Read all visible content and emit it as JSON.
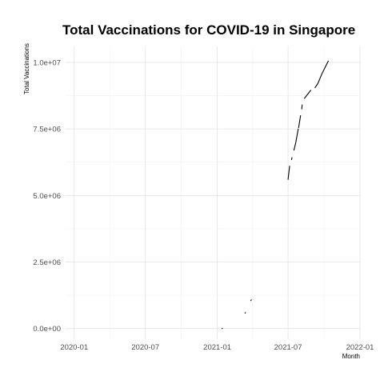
{
  "chart_data": {
    "type": "line",
    "title": "Total Vaccinations for COVID-19 in Singapore",
    "xlabel": "Month",
    "ylabel": "Total Vaccinations",
    "x_ticks": [
      "2020-01",
      "2020-07",
      "2021-01",
      "2021-07",
      "2022-01"
    ],
    "y_ticks": [
      "0.0e+00",
      "2.5e+06",
      "5.0e+06",
      "7.5e+06",
      "1.0e+07"
    ],
    "xlim": [
      "2019-12-10",
      "2022-01-01"
    ],
    "ylim": [
      -400000,
      10600000
    ],
    "grid": true,
    "legend": "none",
    "line_color": "#000000",
    "series": [
      {
        "segments": [
          [
            [
              "2021-01-13",
              0
            ],
            [
              "2021-01-14",
              5000
            ]
          ],
          [
            [
              "2021-03-13",
              580000
            ],
            [
              "2021-03-14",
              600000
            ]
          ],
          [
            [
              "2021-03-28",
              1050000
            ],
            [
              "2021-03-29",
              1080000
            ]
          ],
          [
            [
              "2021-07-01",
              5600000
            ],
            [
              "2021-07-05",
              6100000
            ]
          ],
          [
            [
              "2021-07-10",
              6350000
            ],
            [
              "2021-07-11",
              6420000
            ]
          ],
          [
            [
              "2021-07-16",
              6700000
            ],
            [
              "2021-07-21",
              7000000
            ],
            [
              "2021-07-27",
              7500000
            ]
          ],
          [
            [
              "2021-07-28",
              7550000
            ],
            [
              "2021-08-02",
              8000000
            ]
          ],
          [
            [
              "2021-08-05",
              8250000
            ],
            [
              "2021-08-06",
              8400000
            ]
          ],
          [
            [
              "2021-08-12",
              8650000
            ],
            [
              "2021-08-20",
              8800000
            ],
            [
              "2021-08-28",
              8950000
            ]
          ],
          [
            [
              "2021-09-08",
              9050000
            ],
            [
              "2021-09-15",
              9200000
            ],
            [
              "2021-09-25",
              9550000
            ],
            [
              "2021-10-05",
              9850000
            ],
            [
              "2021-10-12",
              10050000
            ]
          ]
        ]
      }
    ]
  }
}
